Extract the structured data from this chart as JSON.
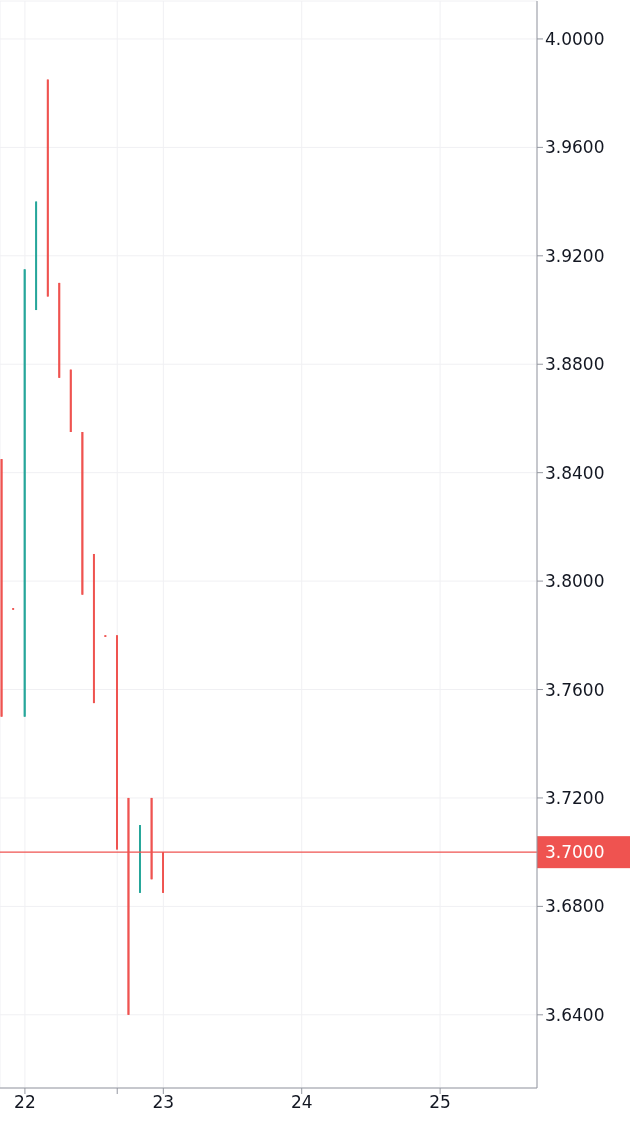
{
  "chart_data": {
    "type": "candlestick",
    "x": [
      21.833,
      21.917,
      22,
      22.083,
      22.167,
      22.25,
      22.333,
      22.417,
      22.5,
      22.583,
      22.667,
      22.75,
      22.833,
      22.917,
      23
    ],
    "ohlc": [
      [
        3.845,
        3.845,
        3.75,
        3.75
      ],
      [
        3.79,
        3.79,
        3.79,
        3.79
      ],
      [
        3.75,
        3.915,
        3.75,
        3.915
      ],
      [
        3.9,
        3.94,
        3.9,
        3.94
      ],
      [
        3.985,
        3.985,
        3.905,
        3.905
      ],
      [
        3.91,
        3.91,
        3.875,
        3.875
      ],
      [
        3.878,
        3.878,
        3.855,
        3.855
      ],
      [
        3.855,
        3.855,
        3.795,
        3.795
      ],
      [
        3.81,
        3.81,
        3.755,
        3.755
      ],
      [
        3.78,
        3.78,
        3.78,
        3.78
      ],
      [
        3.78,
        3.78,
        3.701,
        3.701
      ],
      [
        3.72,
        3.72,
        3.64,
        3.64
      ],
      [
        3.685,
        3.71,
        3.685,
        3.71
      ],
      [
        3.72,
        3.72,
        3.69,
        3.69
      ],
      [
        3.7,
        3.7,
        3.685,
        3.685
      ]
    ],
    "colors": [
      "#ef5350",
      "#ef5350",
      "#26a69a",
      "#26a69a",
      "#ef5350",
      "#ef5350",
      "#ef5350",
      "#ef5350",
      "#ef5350",
      "#ef5350",
      "#ef5350",
      "#ef5350",
      "#26a69a",
      "#ef5350",
      "#ef5350"
    ],
    "xlim": [
      21.82,
      25.7
    ],
    "xticks": [
      22,
      {
        "value": 22.667,
        "label": null
      },
      23,
      24,
      25
    ],
    "ylim": [
      3.613,
      4.014
    ],
    "yticks": [
      {
        "value": 3.64,
        "label": "3.6400"
      },
      {
        "value": 3.68,
        "label": "3.6800"
      },
      {
        "value": 3.72,
        "label": "3.7200"
      },
      {
        "value": 3.76,
        "label": "3.7600"
      },
      {
        "value": 3.8,
        "label": "3.8000"
      },
      {
        "value": 3.84,
        "label": "3.8400"
      },
      {
        "value": 3.88,
        "label": "3.8800"
      },
      {
        "value": 3.92,
        "label": "3.9200"
      },
      {
        "value": 3.96,
        "label": "3.9600"
      },
      {
        "value": 4,
        "label": "4.0000"
      }
    ],
    "ref_lines": [
      {
        "axis": "y",
        "value": 3.7,
        "label": "3.7000",
        "color": "#ef5350"
      }
    ],
    "grid": true
  }
}
